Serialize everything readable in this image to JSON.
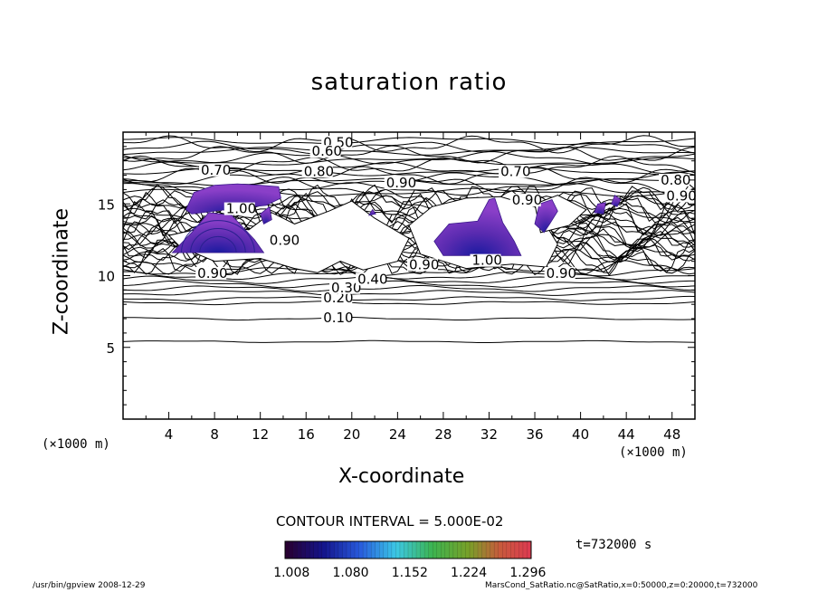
{
  "chart_data": {
    "type": "contour",
    "title": "saturation ratio",
    "xlabel": "X-coordinate",
    "ylabel": "Z-coordinate",
    "x_unit_label": "(×1000 m)",
    "xlim": [
      0,
      50
    ],
    "ylim": [
      0,
      20
    ],
    "x_ticks": [
      4,
      8,
      12,
      16,
      20,
      24,
      28,
      32,
      36,
      40,
      44,
      48
    ],
    "y_ticks": [
      5,
      10,
      15
    ],
    "contour_interval_label": "CONTOUR INTERVAL = 5.000E-02",
    "contour_labels": [
      {
        "text": "0.10",
        "x": 17.5,
        "z": 7.0
      },
      {
        "text": "0.20",
        "x": 17.5,
        "z": 8.4
      },
      {
        "text": "0.30",
        "x": 18.2,
        "z": 9.1
      },
      {
        "text": "0.40",
        "x": 20.5,
        "z": 9.7
      },
      {
        "text": "0.50",
        "x": 17.5,
        "z": 19.2
      },
      {
        "text": "0.60",
        "x": 16.5,
        "z": 18.6
      },
      {
        "text": "0.70",
        "x": 6.8,
        "z": 17.3
      },
      {
        "text": "0.80",
        "x": 15.8,
        "z": 17.2
      },
      {
        "text": "0.90",
        "x": 23.0,
        "z": 16.4
      },
      {
        "text": "0.70",
        "x": 33.0,
        "z": 17.2
      },
      {
        "text": "0.90",
        "x": 6.5,
        "z": 10.1
      },
      {
        "text": "0.90",
        "x": 25.0,
        "z": 10.7
      },
      {
        "text": "1.00",
        "x": 30.5,
        "z": 11.0
      },
      {
        "text": "0.90",
        "x": 37.0,
        "z": 10.1
      },
      {
        "text": "1.00",
        "x": 9.0,
        "z": 14.6
      },
      {
        "text": "0.90",
        "x": 12.8,
        "z": 12.4
      },
      {
        "text": "0.90",
        "x": 34.0,
        "z": 15.2
      },
      {
        "text": "0.80",
        "x": 47.0,
        "z": 16.6
      },
      {
        "text": "0.90",
        "x": 47.5,
        "z": 15.5
      }
    ],
    "shaded_regions_value_range": [
      1.0,
      1.3
    ],
    "colorbar": {
      "ticks": [
        1.008,
        1.08,
        1.152,
        1.224,
        1.296
      ],
      "tick_labels": [
        "1.008",
        "1.080",
        "1.152",
        "1.224",
        "1.296"
      ],
      "range": [
        1.0,
        1.3
      ]
    },
    "time_label": "t=732000 s"
  },
  "footer": {
    "left": "/usr/bin/gpview   2008-12-29",
    "right": "MarsCond_SatRatio.nc@SatRatio,x=0:50000,z=0:20000,t=732000"
  }
}
